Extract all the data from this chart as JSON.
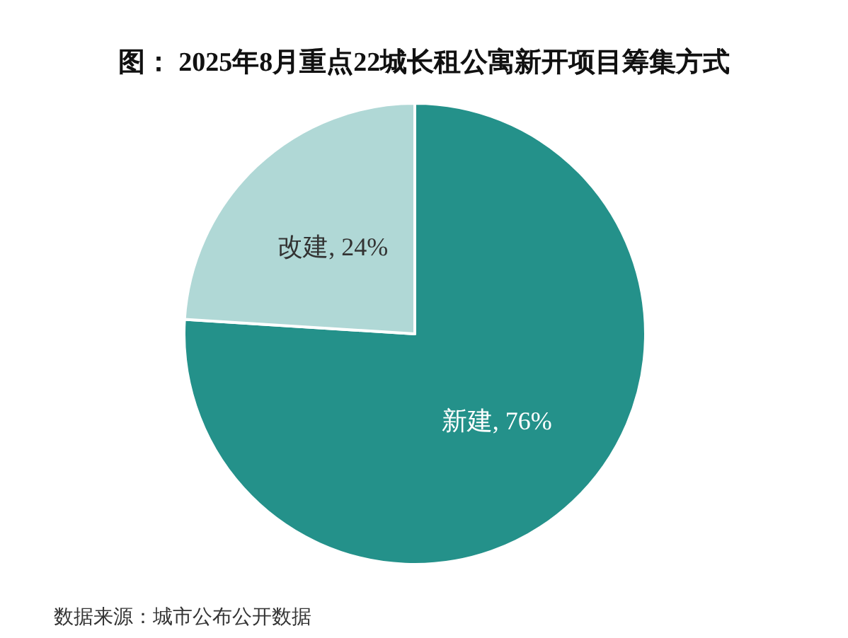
{
  "chart_data": {
    "type": "pie",
    "title": "图： 2025年8月重点22城长租公寓新开项目筹集方式",
    "categories": [
      "新建",
      "改建"
    ],
    "values": [
      76,
      24
    ],
    "colors": [
      "#24918a",
      "#b0d8d6"
    ],
    "value_labels": [
      ", 76%",
      ", 24%"
    ],
    "annotations": [
      "数据来源：城市公布公开数据"
    ]
  }
}
